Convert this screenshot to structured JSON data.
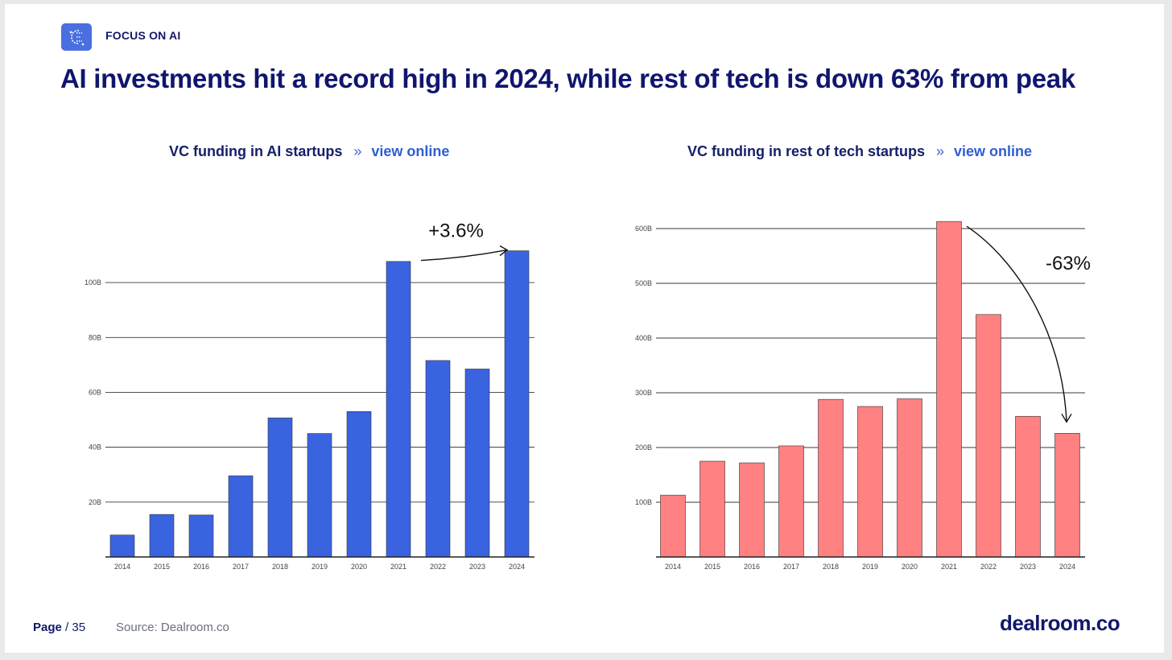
{
  "header": {
    "section_label": "FOCUS ON AI",
    "title": "AI investments hit a record high in 2024, while rest of tech is down 63% from peak"
  },
  "separator": "»",
  "link_label": "view online",
  "footer": {
    "page_label": "Page",
    "page_suffix": "/ 35",
    "source": "Source: Dealroom.co",
    "brand": "dealroom.co"
  },
  "colors": {
    "ai_bars": "#3a63e0",
    "tech_bars": "#ff8181",
    "title": "#10166e",
    "link": "#2f5ed2"
  },
  "chart_data": [
    {
      "type": "bar",
      "title": "VC funding in AI startups",
      "categories": [
        "2014",
        "2015",
        "2016",
        "2017",
        "2018",
        "2019",
        "2020",
        "2021",
        "2022",
        "2023",
        "2024"
      ],
      "values": [
        8,
        15.5,
        15.3,
        29.6,
        50.7,
        45,
        53,
        107.7,
        71.6,
        68.5,
        111.6
      ],
      "ylim": [
        0,
        110
      ],
      "yticks": [
        20,
        40,
        60,
        80,
        100
      ],
      "ytick_labels": [
        "20B",
        "40B",
        "60B",
        "80B",
        "100B"
      ],
      "grid": true,
      "annotation": {
        "text": "+3.6%",
        "from": "2021",
        "to": "2024"
      }
    },
    {
      "type": "bar",
      "title": "VC funding in rest of tech startups",
      "categories": [
        "2014",
        "2015",
        "2016",
        "2017",
        "2018",
        "2019",
        "2020",
        "2021",
        "2022",
        "2023",
        "2024"
      ],
      "values": [
        113,
        175,
        172,
        203,
        288,
        275,
        289,
        613,
        443,
        257,
        226
      ],
      "ylim": [
        0,
        600
      ],
      "yticks": [
        100,
        200,
        300,
        400,
        500,
        600
      ],
      "ytick_labels": [
        "100B",
        "200B",
        "300B",
        "400B",
        "500B",
        "600B"
      ],
      "grid": true,
      "annotation": {
        "text": "-63%",
        "from": "2021",
        "to": "2024"
      }
    }
  ]
}
